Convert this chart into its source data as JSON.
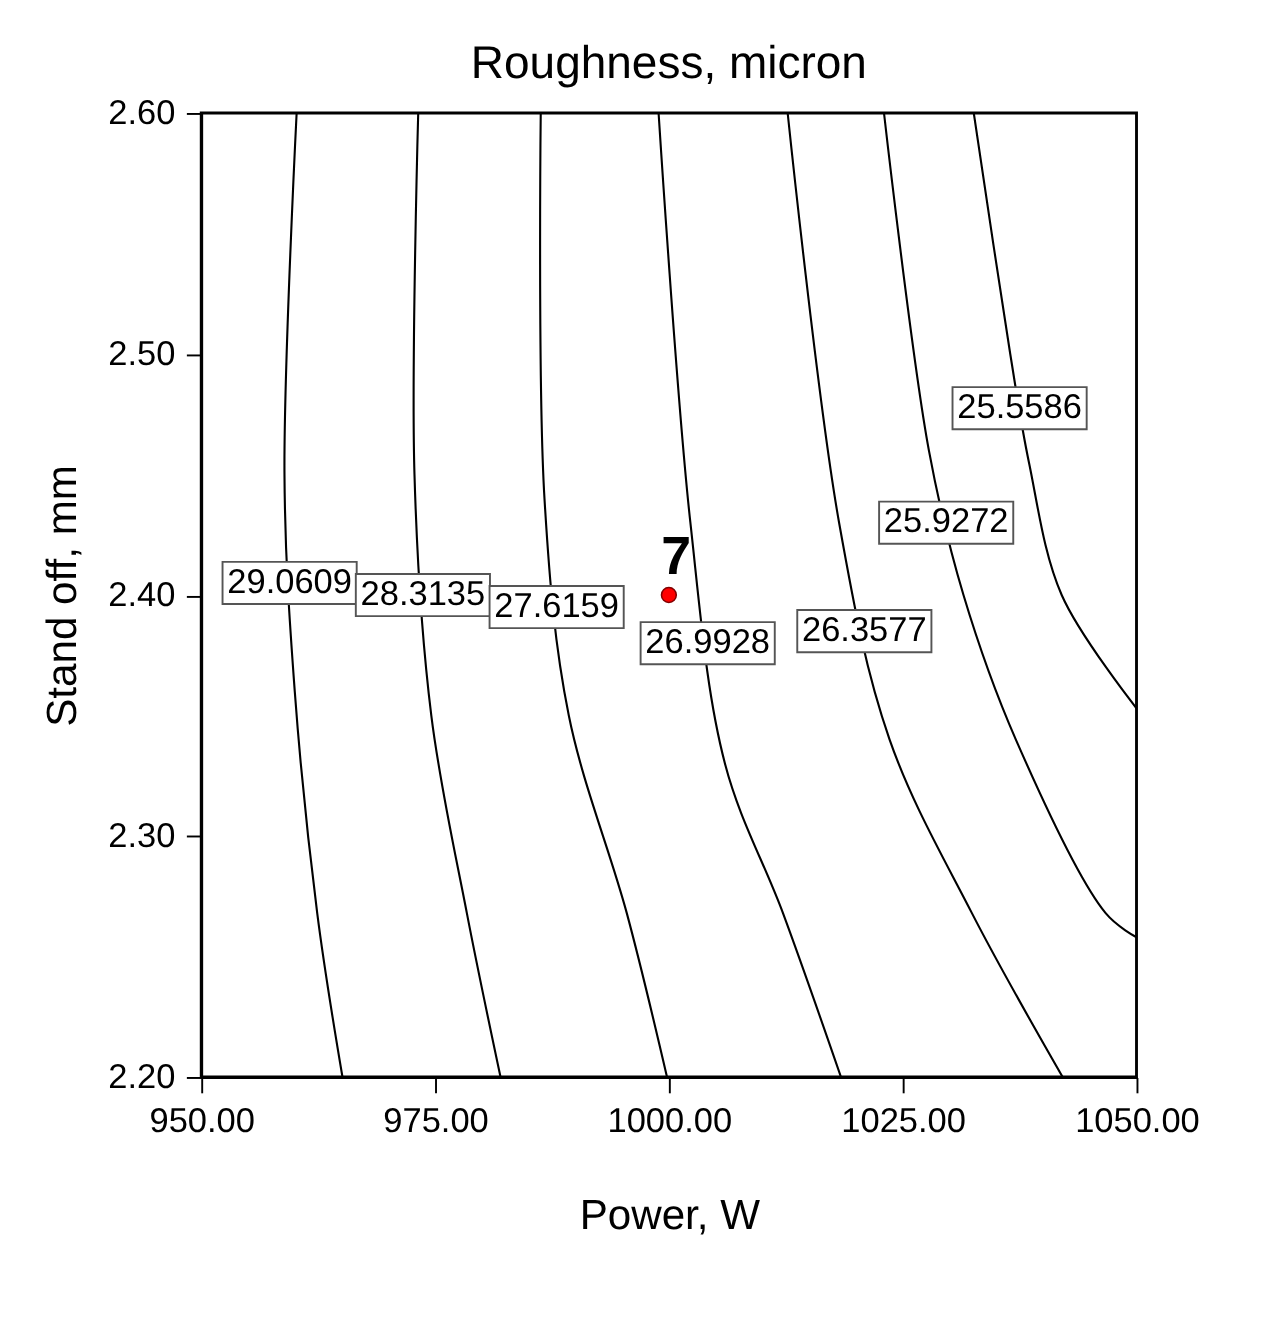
{
  "chart_data": {
    "type": "line",
    "title": "Roughness, micron",
    "xlabel": "Power, W",
    "ylabel": "Stand off, mm",
    "xlim": [
      950,
      1050
    ],
    "ylim": [
      2.2,
      2.6
    ],
    "xticks": [
      {
        "value": 950,
        "label": "950.00"
      },
      {
        "value": 975,
        "label": "975.00"
      },
      {
        "value": 1000,
        "label": "1000.00"
      },
      {
        "value": 1025,
        "label": "1025.00"
      },
      {
        "value": 1050,
        "label": "1050.00"
      }
    ],
    "yticks": [
      {
        "value": 2.2,
        "label": "2.20"
      },
      {
        "value": 2.3,
        "label": "2.30"
      },
      {
        "value": 2.4,
        "label": "2.40"
      },
      {
        "value": 2.5,
        "label": "2.50"
      },
      {
        "value": 2.6,
        "label": "2.60"
      }
    ],
    "grid": false,
    "marker": "none",
    "line_style": "solid",
    "series": [
      {
        "name": "29.0609",
        "color": "#000000",
        "x": [
          960.2,
          958.9,
          960.0,
          962.4,
          965.1
        ],
        "values": [
          2.6,
          2.45,
          2.36,
          2.268,
          2.2
        ]
      },
      {
        "name": "28.3135",
        "color": "#000000",
        "x": [
          973.2,
          972.8,
          974.6,
          978.4,
          982.0
        ],
        "values": [
          2.6,
          2.45,
          2.35,
          2.268,
          2.2
        ]
      },
      {
        "name": "27.6159",
        "color": "#000000",
        "x": [
          986.3,
          986.7,
          989.3,
          995.5,
          999.8
        ],
        "values": [
          2.6,
          2.44,
          2.35,
          2.268,
          2.2
        ]
      },
      {
        "name": "26.9928",
        "color": "#000000",
        "x": [
          998.9,
          1002.3,
          1006.0,
          1012.2,
          1018.4
        ],
        "values": [
          2.6,
          2.43,
          2.33,
          2.268,
          2.2
        ]
      },
      {
        "name": "26.3577",
        "color": "#000000",
        "x": [
          1012.7,
          1018.2,
          1023.6,
          1032.4,
          1042.1
        ],
        "values": [
          2.6,
          2.43,
          2.34,
          2.268,
          2.2
        ]
      },
      {
        "name": "25.9272",
        "color": "#000000",
        "x": [
          1023.0,
          1027.8,
          1031.5,
          1037.1,
          1046.7,
          1050.0
        ],
        "values": [
          2.6,
          2.46,
          2.4,
          2.34,
          2.268,
          2.258
        ]
      },
      {
        "name": "25.5586",
        "color": "#000000",
        "x": [
          1032.6,
          1036.5,
          1038.5,
          1042.0,
          1050.0
        ],
        "values": [
          2.6,
          2.5,
          2.455,
          2.4,
          2.353
        ]
      },
      {
        "type": "scatter",
        "color": "#ff0000",
        "marker": "circle",
        "x": [
          1000
        ],
        "values": [
          2.4
        ]
      }
    ],
    "annotations": [
      {
        "text": "7",
        "x": 1000,
        "y": 2.4
      }
    ]
  }
}
